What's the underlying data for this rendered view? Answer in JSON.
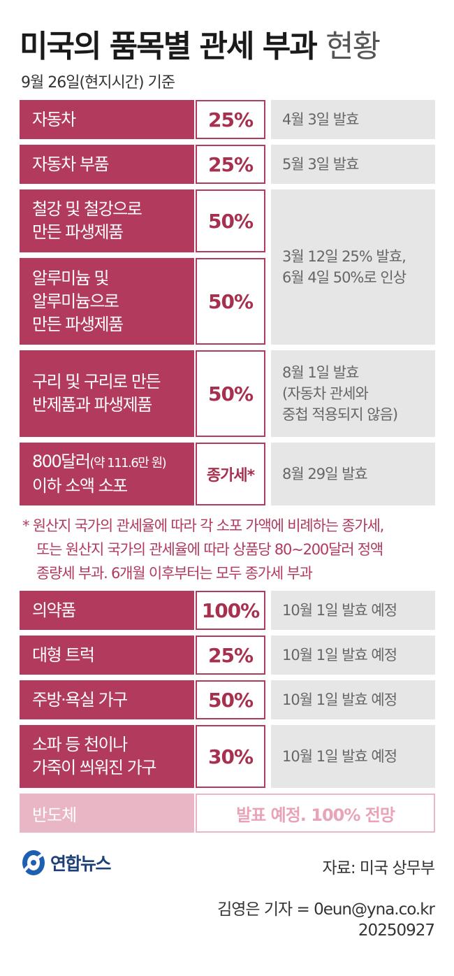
{
  "header": {
    "title": "미국의 품목별 관세 부과",
    "title_light": "현황",
    "date": "9월 26일(현지시간) 기준"
  },
  "rows": [
    {
      "category": "자동차",
      "rate": "25%",
      "note": "4월 3일 발효"
    },
    {
      "category": "자동차 부품",
      "rate": "25%",
      "note": "5월 3일 발효"
    },
    {
      "category_lines": [
        "철강 및 철강으로",
        "만든 파생제품"
      ],
      "rate": "50%"
    },
    {
      "category_lines": [
        "알루미늄 및",
        "알루미늄으로",
        "만든 파생제품"
      ],
      "rate": "50%"
    },
    {
      "category_lines": [
        "구리 및 구리로 만든",
        "반제품과 파생제품"
      ],
      "rate": "50%",
      "note_lines": [
        "8월 1일 발효",
        "(자동차 관세와",
        "중첩 적용되지 않음)"
      ]
    },
    {
      "category_line1": "800달러",
      "category_line1_small": "(약 111.6만 원)",
      "category_line2": "이하 소액 소포",
      "rate": "종가세*",
      "note": "8월 29일 발효"
    }
  ],
  "shared_note_lines": [
    "3월 12일 25% 발효,",
    "6월 4일 50%로 인상"
  ],
  "footnote": [
    "* 원산지 국가의 관세율에 따라 각 소포 가액에 비례하는 종가세,",
    "또는 원산지 국가의 관세율에 따라 상품당 80~200달러 정액",
    "종량세 부과. 6개월 이후부터는 모두 종가세 부과"
  ],
  "rows2": [
    {
      "category": "의약품",
      "rate": "100%",
      "note": "10월 1일 발효 예정"
    },
    {
      "category": "대형 트럭",
      "rate": "25%",
      "note": "10월 1일 발효 예정"
    },
    {
      "category": "주방·욕실 가구",
      "rate": "50%",
      "note": "10월 1일 발효 예정"
    },
    {
      "category_lines": [
        "소파 등 천이나",
        "가죽이 씌워진 가구"
      ],
      "rate": "30%",
      "note": "10월 1일 발효 예정"
    }
  ],
  "semiconductor": {
    "category": "반도체",
    "note": "발표 예정. 100% 전망"
  },
  "logo_text": "연합뉴스",
  "source": "자료: 미국 상무부",
  "credit": {
    "reporter": "김영은 기자 = 0eun@yna.co.kr",
    "date": "20250927"
  },
  "colors": {
    "accent": "#b23a5c",
    "note_bg": "#e6e6e6",
    "faded": "#e8b6c4"
  }
}
